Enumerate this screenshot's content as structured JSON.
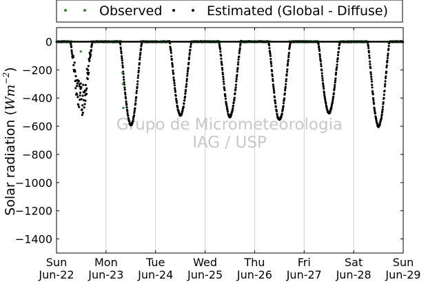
{
  "chart_data": {
    "type": "scatter",
    "ylabel": "Solar radiation ($Wm^{-2}$)",
    "ylabel_text": "Solar radiation (",
    "ylabel_unit": "Wm",
    "ylabel_exp": "−2",
    "ylabel_close": ")",
    "ylim": [
      -1500,
      100
    ],
    "y_ticks": [
      0,
      -200,
      -400,
      -600,
      -800,
      -1000,
      -1200,
      -1400
    ],
    "y_tick_labels": [
      "0",
      "−200",
      "−400",
      "−600",
      "−800",
      "−1000",
      "−1200",
      "−1400"
    ],
    "xlim": [
      "2013-06-22",
      "2013-06-29"
    ],
    "x_tick_labels": [
      {
        "day": "Sun",
        "date": "Jun-22"
      },
      {
        "day": "Mon",
        "date": "Jun-23"
      },
      {
        "day": "Tue",
        "date": "Jun-24"
      },
      {
        "day": "Wed",
        "date": "Jun-25"
      },
      {
        "day": "Thu",
        "date": "Jun-26"
      },
      {
        "day": "Fri",
        "date": "Jun-27"
      },
      {
        "day": "Sat",
        "date": "Jun-28"
      },
      {
        "day": "Sun",
        "date": "Jun-29"
      }
    ],
    "grid": "vertical",
    "legend_position": "top",
    "series": [
      {
        "name": "Observed",
        "color": "#228B22",
        "values_note": "near 0 at night"
      },
      {
        "name": "Estimated (Global - Diffuse)",
        "color": "#000000"
      }
    ],
    "daily_minimum": [
      {
        "day": "Jun-22",
        "min": -545
      },
      {
        "day": "Jun-23",
        "min": -590
      },
      {
        "day": "Jun-24",
        "min": -520
      },
      {
        "day": "Jun-25",
        "min": -530
      },
      {
        "day": "Jun-26",
        "min": -555
      },
      {
        "day": "Jun-27",
        "min": -505
      },
      {
        "day": "Jun-28",
        "min": -600
      }
    ],
    "watermark": [
      "Grupo de Micrometeorologia",
      "IAG / USP"
    ]
  }
}
